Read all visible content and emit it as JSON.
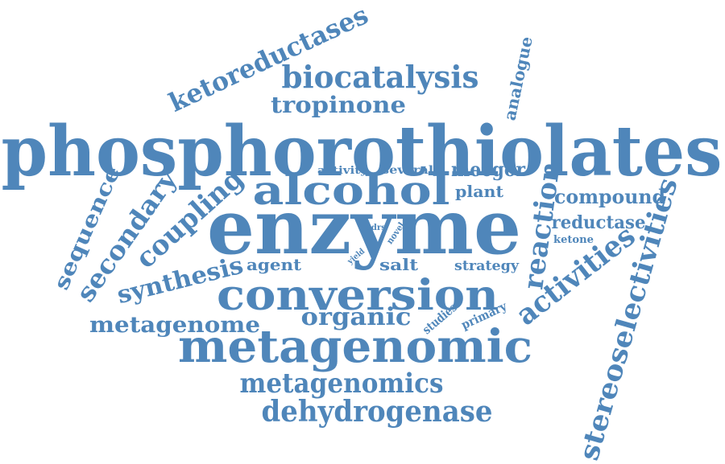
{
  "cloud": {
    "color": "#4f86ba",
    "words": {
      "phosphorothiolates": "phosphorothiolates",
      "enzyme": "enzyme",
      "conversion": "conversion",
      "metagenomic": "metagenomic",
      "alcohol": "alcohol",
      "stereoselectivities": "stereoselectivities",
      "biocatalysis": "biocatalysis",
      "ketoreductases": "ketoreductases",
      "tropinone": "tropinone",
      "analogue": "analogue",
      "coupling": "coupling",
      "secondary": "secondary",
      "sequence": "sequence",
      "synthesis": "synthesis",
      "metagenome": "metagenome",
      "organic": "organic",
      "metagenomics": "metagenomics",
      "dehydrogenase": "dehydrogenase",
      "activities": "activities",
      "reaction": "reaction",
      "compound": "compound",
      "reductase": "reductase",
      "ketone": "ketone",
      "mecgor": "mecgor",
      "plant": "plant",
      "activity": "activity",
      "several": "several",
      "agent": "agent",
      "salt": "salt",
      "strategy": "strategy",
      "sdrs": "sdrs",
      "novel": "novel",
      "yield": "yield",
      "studies": "studies",
      "primary": "primary"
    }
  }
}
